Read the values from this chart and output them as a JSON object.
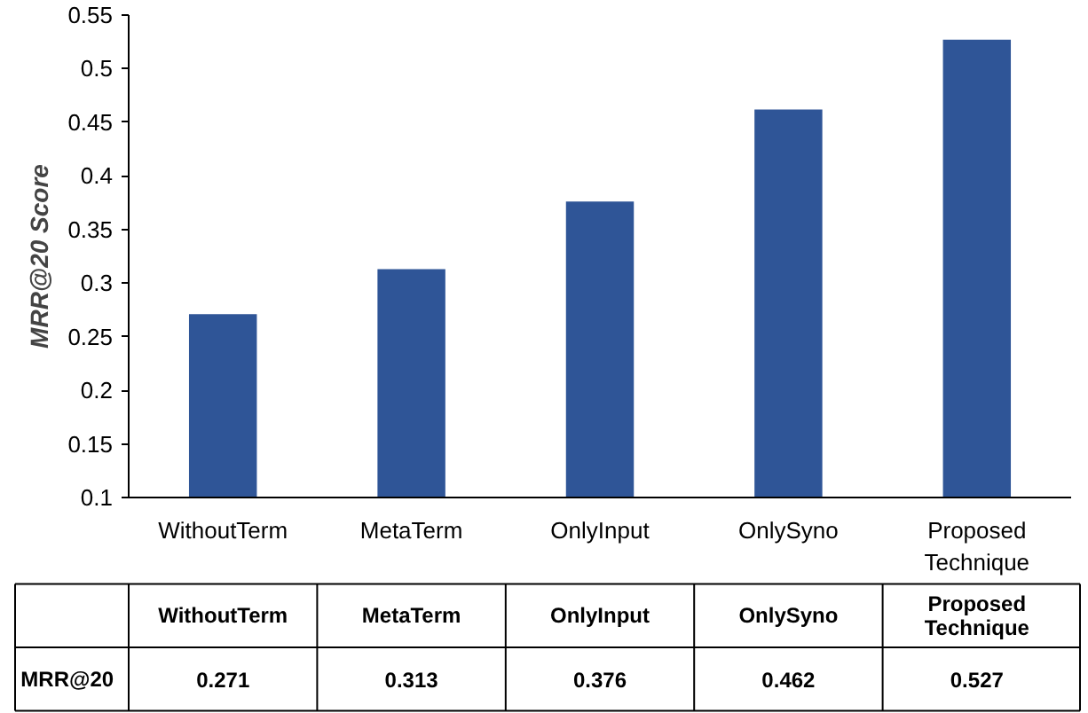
{
  "chart_data": {
    "type": "bar",
    "ylabel": "MRR@20 Score",
    "categories": [
      "WithoutTerm",
      "MetaTerm",
      "OnlyInput",
      "OnlySyno",
      "Proposed Technique"
    ],
    "series": [
      {
        "name": "MRR@20",
        "color": "#2f5597",
        "values": [
          0.271,
          0.313,
          0.376,
          0.462,
          0.527
        ]
      }
    ],
    "ylim": [
      0.1,
      0.55
    ],
    "yticks": [
      0.1,
      0.15,
      0.2,
      0.25,
      0.3,
      0.35,
      0.4,
      0.45,
      0.5,
      0.55
    ],
    "data_labels": true
  }
}
